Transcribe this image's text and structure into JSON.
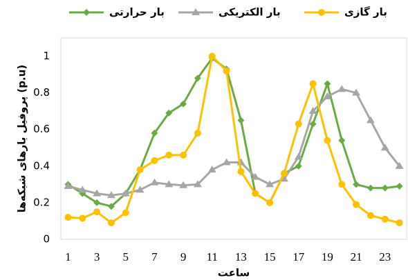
{
  "chart_data": {
    "type": "line",
    "ylabel": "پروفیل بارهای شبکه‌ها (p.u)",
    "xlabel": "ساعت",
    "x": [
      1,
      2,
      3,
      4,
      5,
      6,
      7,
      8,
      9,
      10,
      11,
      12,
      13,
      14,
      15,
      16,
      17,
      18,
      19,
      20,
      21,
      22,
      23,
      24
    ],
    "xlim": [
      0.5,
      24.5
    ],
    "xticks": [
      1,
      3,
      5,
      7,
      9,
      11,
      13,
      15,
      17,
      19,
      21,
      23
    ],
    "ylim": [
      0,
      1.1
    ],
    "yticks": [
      0,
      0.2,
      0.4,
      0.6,
      0.8,
      1
    ],
    "grid": false,
    "legend": "top",
    "series": [
      {
        "name": "بار حرارتی",
        "color": "#6aaa44",
        "marker": "diamond",
        "values": [
          0.3,
          0.25,
          0.2,
          0.18,
          0.25,
          0.38,
          0.58,
          0.69,
          0.74,
          0.88,
          0.99,
          0.93,
          0.65,
          0.25,
          0.2,
          0.36,
          0.4,
          0.63,
          0.85,
          0.54,
          0.3,
          0.28,
          0.28,
          0.29
        ]
      },
      {
        "name": "بار الکتریکی",
        "color": "#a6a6a6",
        "marker": "triangle",
        "values": [
          0.29,
          0.27,
          0.25,
          0.24,
          0.25,
          0.27,
          0.31,
          0.3,
          0.295,
          0.3,
          0.38,
          0.42,
          0.42,
          0.34,
          0.3,
          0.33,
          0.45,
          0.7,
          0.78,
          0.82,
          0.8,
          0.65,
          0.5,
          0.4
        ]
      },
      {
        "name": "بار گازی",
        "color": "#ffc000",
        "marker": "circle",
        "values": [
          0.12,
          0.115,
          0.15,
          0.09,
          0.145,
          0.38,
          0.43,
          0.46,
          0.46,
          0.58,
          1.0,
          0.92,
          0.37,
          0.25,
          0.2,
          0.36,
          0.63,
          0.85,
          0.54,
          0.3,
          0.19,
          0.13,
          0.11,
          0.09
        ]
      }
    ]
  }
}
